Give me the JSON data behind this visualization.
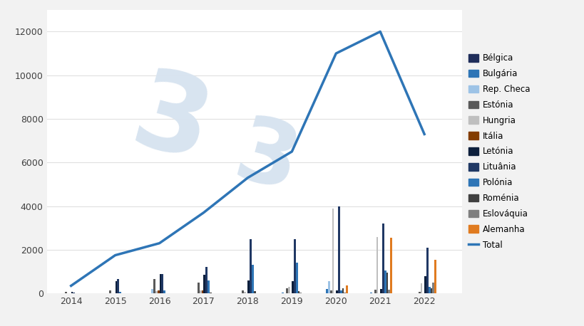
{
  "years": [
    2014,
    2015,
    2016,
    2017,
    2018,
    2019,
    2020,
    2021,
    2022
  ],
  "total_line": [
    350,
    1750,
    2300,
    3700,
    5300,
    6500,
    11000,
    12000,
    7300
  ],
  "country_names": [
    "Bélgica",
    "Bulgária",
    "Rep. Checa",
    "Estónia",
    "Hungria",
    "Itália",
    "Letónia",
    "Lituânia",
    "Polónia",
    "Roménia",
    "Eslováquia",
    "Alemanha"
  ],
  "country_data": {
    "Bélgica": [
      0,
      0,
      0,
      0,
      0,
      0,
      0,
      0,
      0
    ],
    "Bulgária": [
      0,
      0,
      0,
      0,
      0,
      30,
      200,
      50,
      0
    ],
    "Rep. Checa": [
      0,
      0,
      200,
      0,
      0,
      0,
      550,
      0,
      0
    ],
    "Estónia": [
      80,
      150,
      650,
      500,
      150,
      250,
      150,
      180,
      80
    ],
    "Hungria": [
      0,
      0,
      100,
      150,
      80,
      300,
      3900,
      2600,
      450
    ],
    "Itália": [
      0,
      0,
      150,
      150,
      0,
      0,
      0,
      0,
      0
    ],
    "Letónia": [
      80,
      550,
      900,
      850,
      600,
      550,
      150,
      200,
      800
    ],
    "Lituânia": [
      30,
      650,
      900,
      1200,
      2500,
      2500,
      4000,
      3200,
      2100
    ],
    "Polónia": [
      0,
      80,
      150,
      600,
      1300,
      1400,
      150,
      1050,
      300
    ],
    "Roménia": [
      0,
      0,
      0,
      50,
      100,
      100,
      250,
      950,
      250
    ],
    "Eslováquia": [
      0,
      0,
      0,
      0,
      0,
      50,
      50,
      180,
      500
    ],
    "Alemanha": [
      0,
      0,
      0,
      0,
      0,
      0,
      350,
      2550,
      1550
    ]
  },
  "colors": {
    "Bélgica": "#1f2d5a",
    "Bulgária": "#2e75b6",
    "Rep. Checa": "#9dc3e6",
    "Estónia": "#595959",
    "Hungria": "#bfbfbf",
    "Itália": "#833c00",
    "Letónia": "#0d1f3c",
    "Lituânia": "#203864",
    "Polónia": "#2e75b6",
    "Roménia": "#404040",
    "Eslováquia": "#7f7f7f",
    "Alemanha": "#e07b20",
    "Total": "#2e75b6"
  },
  "bg_color": "#f2f2f2",
  "plot_bg": "#ffffff",
  "ylim": [
    0,
    13000
  ],
  "yticks": [
    0,
    2000,
    4000,
    6000,
    8000,
    10000,
    12000
  ],
  "grid_color": "#e0e0e0",
  "watermark_color": "#d8e4f0"
}
